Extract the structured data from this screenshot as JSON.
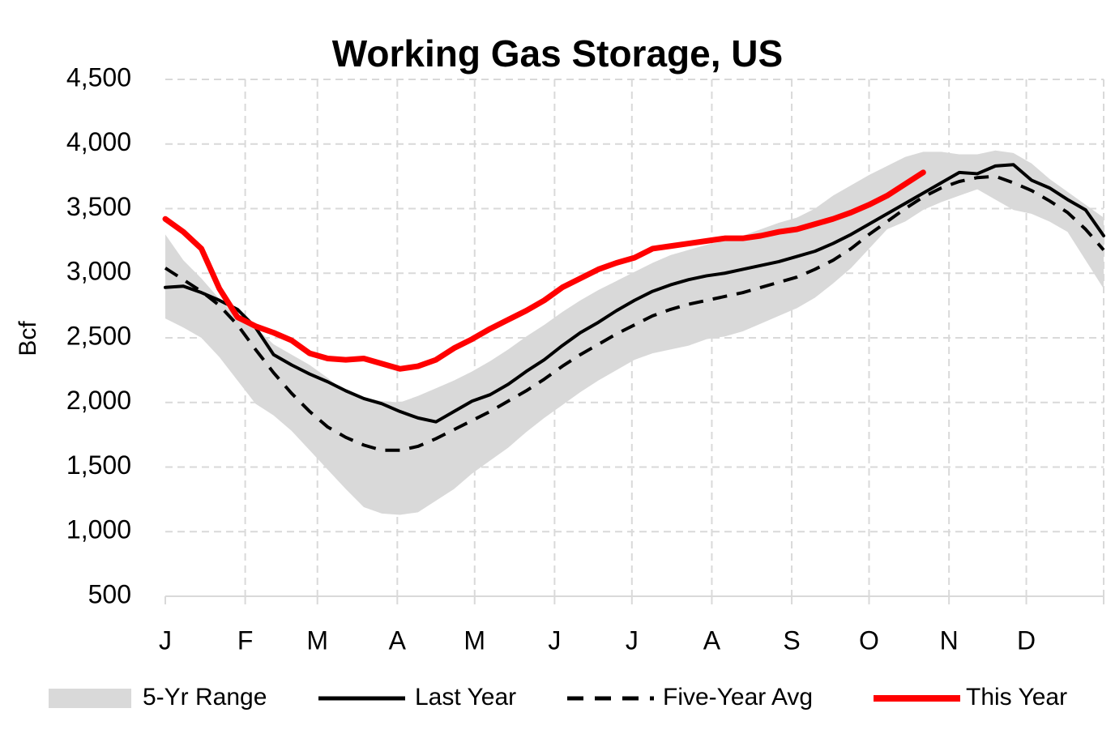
{
  "chart_data": {
    "type": "line",
    "title": "Working Gas Storage, US",
    "y_label": "Bcf",
    "x": [
      1,
      8,
      15,
      22,
      29,
      36,
      43,
      50,
      57,
      64,
      71,
      78,
      85,
      92,
      99,
      106,
      113,
      120,
      127,
      134,
      141,
      148,
      155,
      162,
      169,
      176,
      183,
      190,
      197,
      204,
      211,
      218,
      225,
      232,
      239,
      246,
      253,
      260,
      267,
      274,
      281,
      288,
      295,
      302,
      309,
      316,
      323,
      330,
      337,
      344,
      351,
      358,
      365
    ],
    "xlim": [
      1,
      365
    ],
    "xticks": [
      {
        "value": 1,
        "label": "J"
      },
      {
        "value": 32,
        "label": "F"
      },
      {
        "value": 60,
        "label": "M"
      },
      {
        "value": 91,
        "label": "A"
      },
      {
        "value": 121,
        "label": "M"
      },
      {
        "value": 152,
        "label": "J"
      },
      {
        "value": 182,
        "label": "J"
      },
      {
        "value": 213,
        "label": "A"
      },
      {
        "value": 244,
        "label": "S"
      },
      {
        "value": 274,
        "label": "O"
      },
      {
        "value": 305,
        "label": "N"
      },
      {
        "value": 335,
        "label": "D"
      },
      {
        "value": 365,
        "label": null
      }
    ],
    "ylim": [
      500,
      4500
    ],
    "yticks": [
      {
        "value": 500,
        "label": "500"
      },
      {
        "value": 1000,
        "label": "1,000"
      },
      {
        "value": 1500,
        "label": "1,500"
      },
      {
        "value": 2000,
        "label": "2,000"
      },
      {
        "value": 2500,
        "label": "2,500"
      },
      {
        "value": 3000,
        "label": "3,000"
      },
      {
        "value": 3500,
        "label": "3,500"
      },
      {
        "value": 4000,
        "label": "4,000"
      },
      {
        "value": 4500,
        "label": "4,500"
      }
    ],
    "grid": true,
    "legend": "bottom",
    "series": [
      {
        "name": "5-Yr Range",
        "color": "#d9d9d9",
        "style": "area",
        "low": [
          2650,
          2580,
          2500,
          2350,
          2170,
          1990,
          1900,
          1780,
          1630,
          1480,
          1330,
          1190,
          1140,
          1130,
          1150,
          1240,
          1330,
          1450,
          1550,
          1650,
          1770,
          1880,
          1980,
          2080,
          2170,
          2250,
          2330,
          2380,
          2410,
          2440,
          2490,
          2510,
          2550,
          2610,
          2670,
          2730,
          2810,
          2920,
          3040,
          3190,
          3340,
          3400,
          3490,
          3550,
          3600,
          3650,
          3570,
          3490,
          3460,
          3400,
          3320,
          3100,
          2880
        ],
        "high": [
          3300,
          3100,
          2960,
          2800,
          2650,
          2580,
          2450,
          2370,
          2290,
          2190,
          2080,
          2040,
          2010,
          2000,
          2050,
          2110,
          2170,
          2240,
          2320,
          2410,
          2510,
          2600,
          2700,
          2790,
          2870,
          2940,
          3010,
          3080,
          3140,
          3180,
          3220,
          3250,
          3290,
          3340,
          3390,
          3430,
          3500,
          3600,
          3680,
          3760,
          3830,
          3900,
          3940,
          3940,
          3920,
          3920,
          3950,
          3930,
          3850,
          3730,
          3630,
          3530,
          3430
        ]
      },
      {
        "name": "Last Year",
        "color": "#000000",
        "style": "solid",
        "values": [
          2890,
          2900,
          2850,
          2790,
          2720,
          2580,
          2370,
          2290,
          2220,
          2160,
          2090,
          2030,
          1990,
          1930,
          1880,
          1850,
          1930,
          2010,
          2060,
          2140,
          2240,
          2330,
          2440,
          2540,
          2620,
          2710,
          2790,
          2860,
          2910,
          2950,
          2980,
          3000,
          3030,
          3060,
          3090,
          3130,
          3170,
          3230,
          3300,
          3380,
          3460,
          3540,
          3620,
          3700,
          3780,
          3770,
          3830,
          3840,
          3720,
          3660,
          3570,
          3490,
          3290
        ]
      },
      {
        "name": "Five-Year Avg",
        "color": "#000000",
        "style": "dashed",
        "values": [
          3040,
          2950,
          2860,
          2750,
          2600,
          2410,
          2230,
          2070,
          1930,
          1810,
          1730,
          1670,
          1630,
          1630,
          1660,
          1720,
          1790,
          1860,
          1930,
          2010,
          2090,
          2180,
          2280,
          2370,
          2450,
          2530,
          2600,
          2670,
          2720,
          2760,
          2790,
          2820,
          2850,
          2890,
          2930,
          2970,
          3030,
          3100,
          3190,
          3300,
          3400,
          3500,
          3590,
          3660,
          3710,
          3740,
          3750,
          3700,
          3640,
          3560,
          3470,
          3340,
          3180
        ]
      },
      {
        "name": "This Year",
        "color": "#ff0000",
        "style": "bold",
        "values": [
          3420,
          3320,
          3190,
          2880,
          2660,
          2590,
          2540,
          2480,
          2380,
          2340,
          2330,
          2340,
          2300,
          2260,
          2280,
          2330,
          2420,
          2490,
          2570,
          2640,
          2710,
          2790,
          2890,
          2960,
          3030,
          3080,
          3120,
          3190,
          3210,
          3230,
          3250,
          3270,
          3270,
          3290,
          3320,
          3340,
          3380,
          3420,
          3470,
          3530,
          3600,
          3690,
          3780,
          null,
          null,
          null,
          null,
          null,
          null,
          null,
          null,
          null,
          null
        ]
      }
    ]
  }
}
